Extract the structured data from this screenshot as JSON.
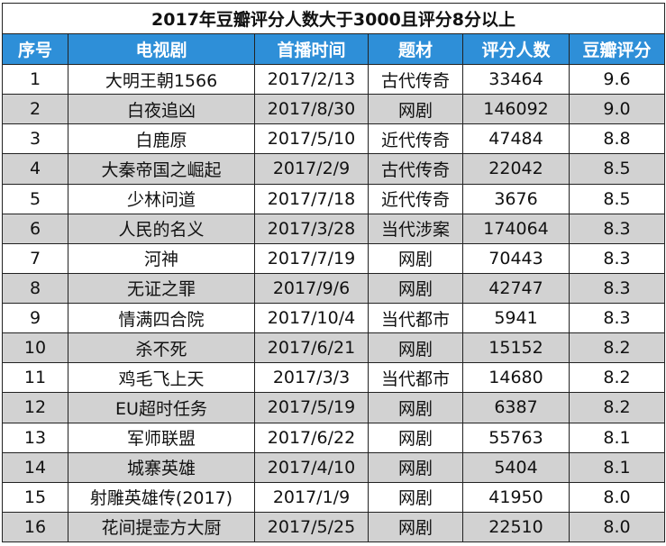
{
  "title": "2017年豆瓣评分人数大于3000且评分8分以上",
  "columns": [
    "序号",
    "电视剧",
    "首播时间",
    "题材",
    "评分人数",
    "豆瓣评分"
  ],
  "rows": [
    [
      "1",
      "大明王朝1566",
      "2017/2/13",
      "古代传奇",
      "33464",
      "9.6"
    ],
    [
      "2",
      "白夜追凶",
      "2017/8/30",
      "网剧",
      "146092",
      "9.0"
    ],
    [
      "3",
      "白鹿原",
      "2017/5/10",
      "近代传奇",
      "47484",
      "8.8"
    ],
    [
      "4",
      "大秦帝国之崛起",
      "2017/2/9",
      "古代传奇",
      "22042",
      "8.5"
    ],
    [
      "5",
      "少林问道",
      "2017/7/18",
      "近代传奇",
      "3676",
      "8.5"
    ],
    [
      "6",
      "人民的名义",
      "2017/3/28",
      "当代涉案",
      "174064",
      "8.3"
    ],
    [
      "7",
      "河神",
      "2017/7/19",
      "网剧",
      "70443",
      "8.3"
    ],
    [
      "8",
      "无证之罪",
      "2017/9/6",
      "网剧",
      "42747",
      "8.3"
    ],
    [
      "9",
      "情满四合院",
      "2017/10/4",
      "当代都市",
      "5941",
      "8.3"
    ],
    [
      "10",
      "杀不死",
      "2017/6/21",
      "网剧",
      "15152",
      "8.2"
    ],
    [
      "11",
      "鸡毛飞上天",
      "2017/3/3",
      "当代都市",
      "14680",
      "8.2"
    ],
    [
      "12",
      "EU超时任务",
      "2017/5/19",
      "网剧",
      "6387",
      "8.2"
    ],
    [
      "13",
      "军师联盟",
      "2017/6/22",
      "网剧",
      "55763",
      "8.1"
    ],
    [
      "14",
      "城寨英雄",
      "2017/4/10",
      "网剧",
      "5404",
      "8.1"
    ],
    [
      "15",
      "射雕英雄传(2017)",
      "2017/1/9",
      "网剧",
      "41950",
      "8.0"
    ],
    [
      "16",
      "花间提壶方大厨",
      "2017/5/25",
      "网剧",
      "22510",
      "8.0"
    ]
  ],
  "colors": {
    "header_bg": "#2e8fd8",
    "header_text": "#ffffff",
    "alt_row_bg": "#d2d2d2",
    "border": "#222222"
  }
}
